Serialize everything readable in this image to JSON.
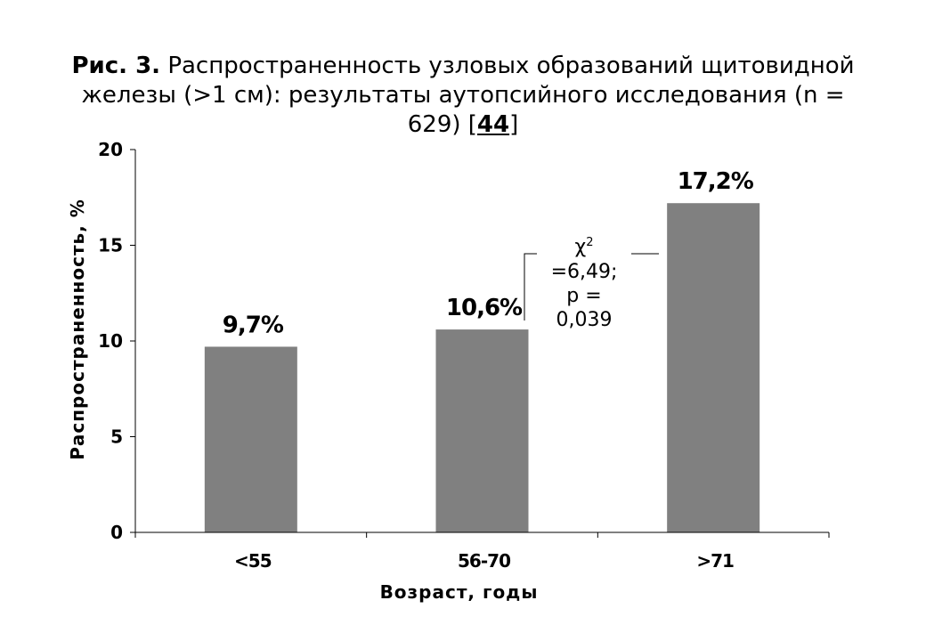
{
  "figure": {
    "label": "Рис. 3.",
    "title_text": "Распространенность узловых образований щитовидной железы (>1 см): результаты аутопсийного исследования (n = 629) [",
    "ref": "44",
    "title_end": "]"
  },
  "chart_data": {
    "type": "bar",
    "categories": [
      "<55",
      "56-70",
      ">71"
    ],
    "values": [
      9.7,
      10.6,
      17.2
    ],
    "data_labels": [
      "9,7%",
      "10,6%",
      "17,2%"
    ],
    "xlabel": "Возраст, годы",
    "ylabel": "Распространенность, %",
    "ylim": [
      0,
      20
    ],
    "yticks": [
      0,
      5,
      10,
      15,
      20
    ],
    "bar_color": "#808080",
    "grid": false,
    "annotation": {
      "chi_symbol": "χ",
      "chi_sup": "2",
      "lines": [
        "=6,49;",
        "p =",
        "0,039"
      ]
    }
  }
}
